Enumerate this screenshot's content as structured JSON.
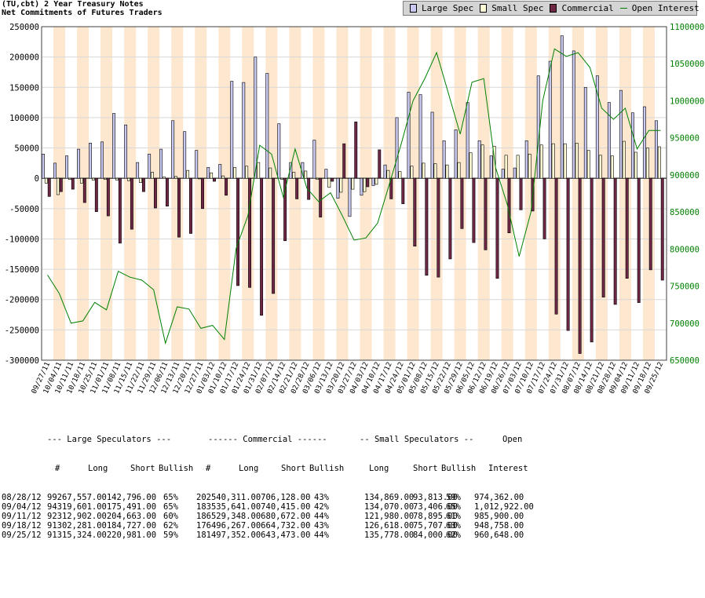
{
  "header": {
    "title_line1": "(TU,cbt) 2 Year Treasury Notes",
    "title_line2": "Net Commitments of Futures Traders"
  },
  "legend": [
    {
      "label": "Large Spec",
      "color": "#c8c8f0",
      "kind": "bar"
    },
    {
      "label": "Small Spec",
      "color": "#fffcd6",
      "kind": "bar"
    },
    {
      "label": "Commercial",
      "color": "#6e2846",
      "kind": "bar"
    },
    {
      "label": "Open Interest",
      "color": "#008000",
      "kind": "line"
    }
  ],
  "chart_data": {
    "type": "bar",
    "categories": [
      "09/27/11",
      "10/04/11",
      "10/11/11",
      "10/18/11",
      "10/25/11",
      "11/01/11",
      "11/08/11",
      "11/15/11",
      "11/22/11",
      "11/29/11",
      "12/06/11",
      "12/13/11",
      "12/20/11",
      "12/27/11",
      "01/03/12",
      "01/10/12",
      "01/17/12",
      "01/24/12",
      "01/31/12",
      "02/07/12",
      "02/14/12",
      "02/21/12",
      "02/28/12",
      "03/06/12",
      "03/13/12",
      "03/20/12",
      "03/27/12",
      "04/03/12",
      "04/10/12",
      "04/17/12",
      "04/24/12",
      "05/01/12",
      "05/08/12",
      "05/15/12",
      "05/22/12",
      "05/29/12",
      "06/05/12",
      "06/12/12",
      "06/19/12",
      "06/26/12",
      "07/03/12",
      "07/10/12",
      "07/17/12",
      "07/24/12",
      "07/31/12",
      "08/07/12",
      "08/14/12",
      "08/21/12",
      "08/28/12",
      "09/04/12",
      "09/11/12",
      "09/18/12",
      "09/25/12"
    ],
    "x_tick_labels": [
      "09/27/11",
      "10/04/11",
      "10/11/11",
      "10/18/11",
      "10/25/11",
      "11/01/11",
      "11/08/11",
      "11/15/11",
      "11/22/11",
      "11/29/11",
      "12/06/11",
      "12/13/11",
      "12/20/11",
      "12/27/11",
      "01/03/12",
      "01/10/12",
      "01/17/12",
      "01/24/12",
      "01/31/12",
      "02/07/12",
      "02/14/12",
      "02/21/12",
      "02/28/12",
      "03/06/12",
      "03/13/12",
      "03/20/12",
      "03/27/12",
      "04/03/12",
      "04/10/12",
      "04/17/12",
      "04/24/12",
      "05/01/12",
      "05/08/12",
      "05/15/12",
      "05/22/12",
      "05/29/12",
      "06/05/12",
      "06/12/12",
      "06/19/12",
      "06/26/12",
      "07/03/12",
      "07/10/12",
      "07/17/12",
      "07/24/12",
      "07/31/12",
      "08/07/12",
      "08/14/12",
      "08/21/12",
      "08/28/12",
      "09/04/12",
      "09/11/12",
      "09/18/12",
      "09/25/12"
    ],
    "series": [
      {
        "name": "Large Spec",
        "values": [
          40000,
          25000,
          37000,
          48000,
          58000,
          60000,
          107000,
          88000,
          26000,
          40000,
          48000,
          95000,
          77000,
          46000,
          18000,
          23000,
          160000,
          158000,
          200000,
          173000,
          90000,
          26000,
          26000,
          63000,
          15000,
          -33000,
          -63000,
          -28000,
          -12000,
          22000,
          100000,
          142000,
          138000,
          109000,
          62000,
          80000,
          125000,
          62000,
          37000,
          15000,
          17000,
          62000,
          169000,
          193000,
          235000,
          210000,
          150000,
          169000,
          125000,
          145000,
          108000,
          118000,
          95000
        ]
      },
      {
        "name": "Small Spec",
        "values": [
          -8000,
          -27000,
          -2000,
          -8000,
          -3000,
          -2000,
          -3000,
          -4000,
          -7000,
          10000,
          2000,
          3000,
          13000,
          -1000,
          9000,
          4000,
          18000,
          20000,
          26000,
          17000,
          -2000,
          10000,
          12000,
          -2000,
          -15000,
          -23000,
          -18000,
          -22000,
          -10000,
          13000,
          11000,
          20000,
          25000,
          24000,
          22000,
          26000,
          42000,
          55000,
          53000,
          38000,
          38000,
          40000,
          55000,
          57000,
          57000,
          58000,
          46000,
          38000,
          37000,
          61000,
          43000,
          50000,
          52000
        ]
      },
      {
        "name": "Commercial",
        "values": [
          -30000,
          -22000,
          -18000,
          -40000,
          -55000,
          -62000,
          -107000,
          -84000,
          -22000,
          -49000,
          -46000,
          -97000,
          -91000,
          -50000,
          -5000,
          -28000,
          -177000,
          -180000,
          -226000,
          -190000,
          -103000,
          -34000,
          -35000,
          -64000,
          -5000,
          57000,
          93000,
          -14000,
          47000,
          -34000,
          -42000,
          -112000,
          -160000,
          -163000,
          -133000,
          -83000,
          -106000,
          -118000,
          -165000,
          -90000,
          -52000,
          -54000,
          -100000,
          -224000,
          -251000,
          -289000,
          -270000,
          -196000,
          -208000,
          -165000,
          -205000,
          -151000,
          -168000
        ]
      },
      {
        "name": "Open Interest",
        "values": [
          765000,
          740000,
          700000,
          703000,
          728000,
          718000,
          770000,
          762000,
          758000,
          745000,
          673000,
          722000,
          719000,
          693000,
          697000,
          678000,
          801000,
          845000,
          940000,
          928000,
          870000,
          935000,
          882000,
          864000,
          876000,
          845000,
          812000,
          815000,
          835000,
          888000,
          942000,
          1000000,
          1030000,
          1065000,
          1010000,
          955000,
          1025000,
          1030000,
          910000,
          860000,
          790000,
          850000,
          1000000,
          1070000,
          1060000,
          1065000,
          1045000,
          990000,
          975000,
          990000,
          935000,
          960000,
          960000
        ]
      }
    ],
    "ylim_left": [
      -300000,
      250000
    ],
    "yticks_left": [
      "250000",
      "200000",
      "150000",
      "100000",
      "50000",
      "0",
      "-50000",
      "-100000",
      "-150000",
      "-200000",
      "-250000",
      "-300000"
    ],
    "ylim_right": [
      650000,
      1100000
    ],
    "yticks_right": [
      "1100000",
      "1050000",
      "1000000",
      "950000",
      "900000",
      "850000",
      "800000",
      "750000",
      "700000",
      "650000"
    ],
    "colors": {
      "large_spec": "#c8c8f0",
      "small_spec": "#fffcd6",
      "commercial": "#6e2846",
      "open_interest": "#008000",
      "band": "#fde7cf",
      "left_axis_text": "#000000",
      "right_axis_text": "#008000"
    }
  },
  "table": {
    "header1": {
      "large": "--- Large Speculators ---",
      "commercial": "------ Commercial ------",
      "small": "-- Small Speculators --",
      "open": "Open"
    },
    "header2": {
      "hash1": "#",
      "long1": "Long",
      "short1": "Short",
      "bull1": "Bullish",
      "hash2": "#",
      "long2": "Long",
      "short2": "Short",
      "bull2": "Bullish",
      "long3": "Long",
      "short3": "Short",
      "bull3": "Bullish",
      "oi": "Interest"
    },
    "rows": [
      {
        "date": "08/28/12",
        "ls": "99267,557.00142,796.00",
        "lb": "65%",
        "cs": "202540,311.00706,128.00",
        "cb": "43%",
        "sl": "134,869.00",
        "ss": "93,813.00",
        "sb": "59%",
        "oi": "974,362.00"
      },
      {
        "date": "09/04/12",
        "ls": "94319,601.00175,491.00",
        "lb": "65%",
        "cs": "183535,641.00740,415.00",
        "cb": "42%",
        "sl": "134,070.00",
        "ss": "73,406.00",
        "sb": "65%",
        "oi": "1,012,922.00"
      },
      {
        "date": "09/11/12",
        "ls": "92312,902.00204,663.00",
        "lb": "60%",
        "cs": "186529,348.00680,672.00",
        "cb": "44%",
        "sl": "121,980.00",
        "ss": "78,895.00",
        "sb": "61%",
        "oi": "985,900.00"
      },
      {
        "date": "09/18/12",
        "ls": "91302,281.00184,727.00",
        "lb": "62%",
        "cs": "176496,267.00664,732.00",
        "cb": "43%",
        "sl": "126,618.00",
        "ss": "75,707.00",
        "sb": "63%",
        "oi": "948,758.00"
      },
      {
        "date": "09/25/12",
        "ls": "91315,324.00220,981.00",
        "lb": "59%",
        "cs": "181497,352.00643,473.00",
        "cb": "44%",
        "sl": "135,778.00",
        "ss": "84,000.00",
        "sb": "62%",
        "oi": "960,648.00"
      }
    ]
  }
}
